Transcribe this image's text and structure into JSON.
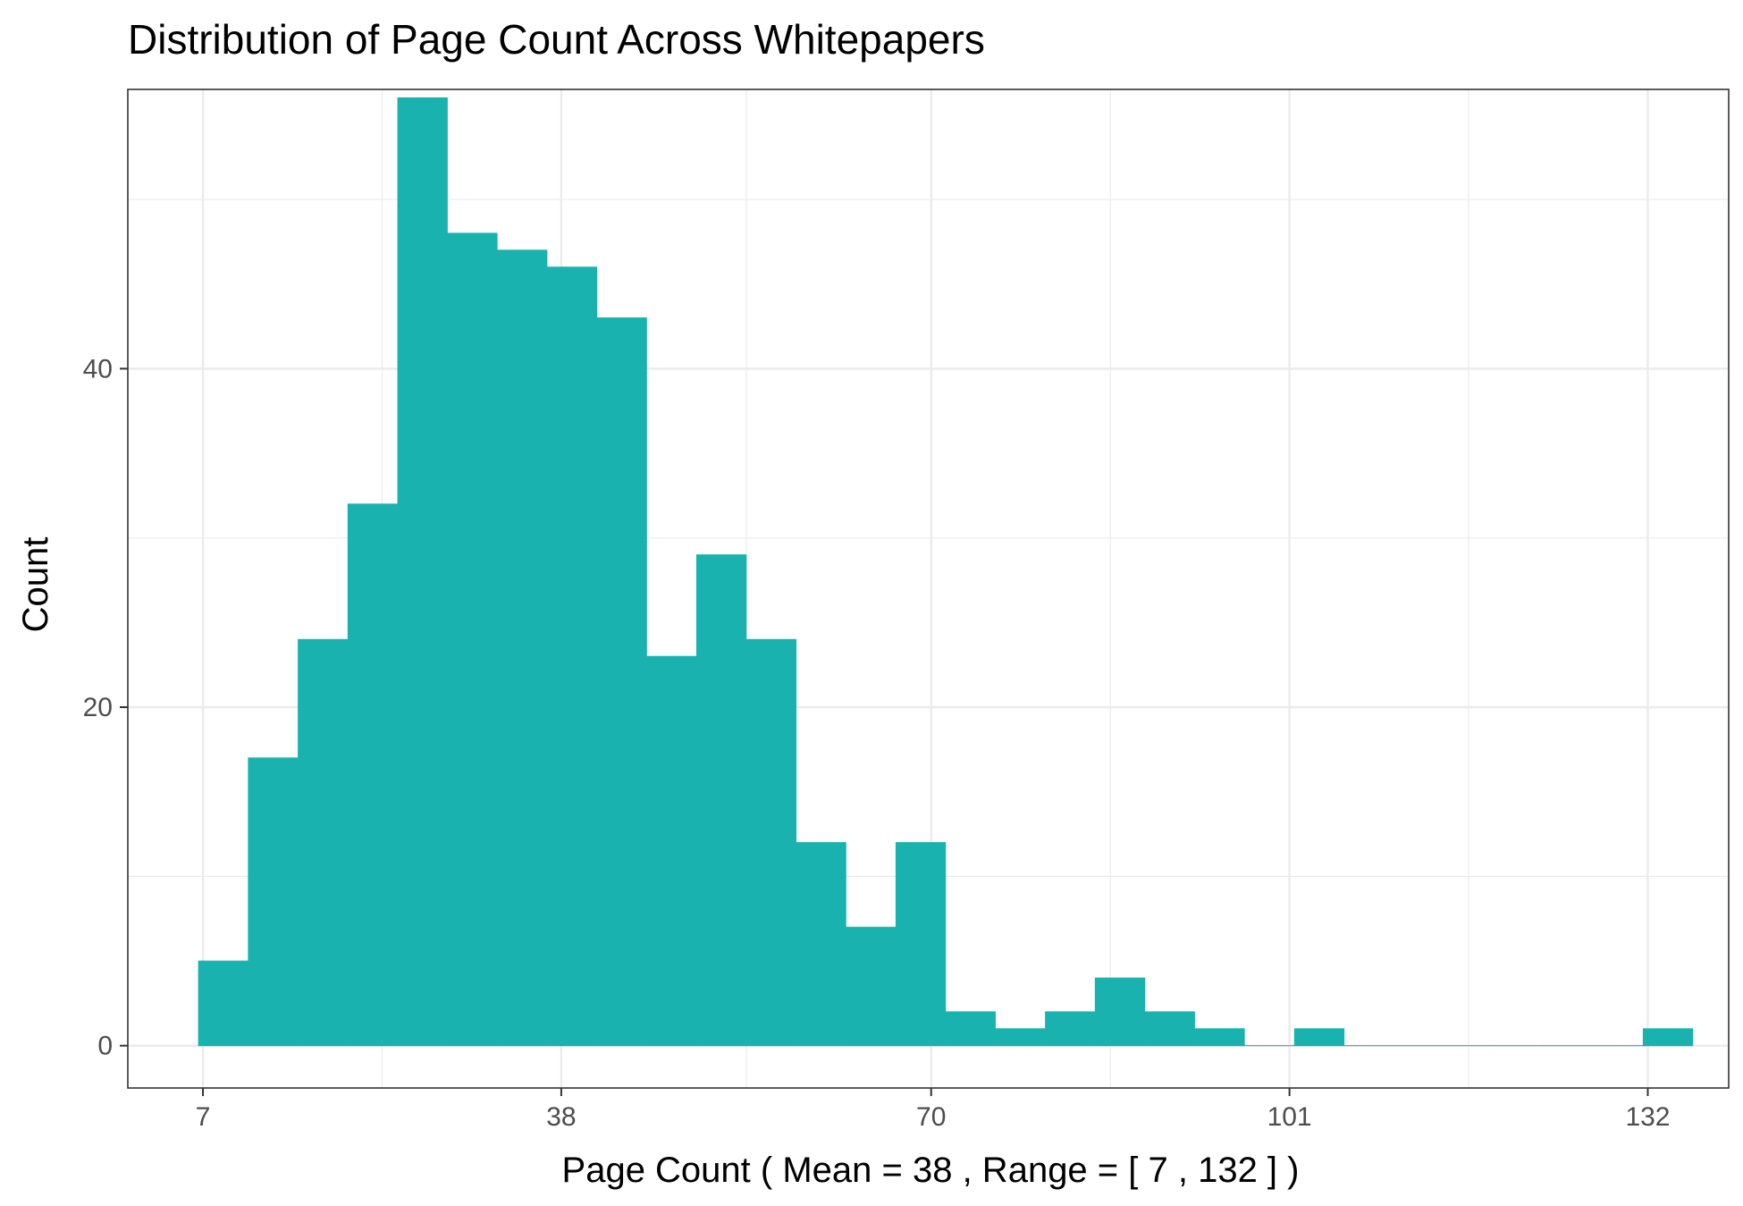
{
  "chart_data": {
    "type": "bar",
    "title": "Distribution of Page Count Across Whitepapers",
    "xlabel": "Page Count ( Mean = 38 , Range = [ 7 , 132 ] )",
    "ylabel": "Count",
    "bin_width": 4.31,
    "bin_start": 6.58,
    "values": [
      5,
      17,
      24,
      32,
      56,
      48,
      47,
      46,
      43,
      23,
      29,
      24,
      12,
      7,
      12,
      2,
      1,
      2,
      4,
      2,
      1,
      0,
      1,
      0,
      0,
      0,
      0,
      0,
      0,
      1
    ],
    "xlim": [
      0.5,
      139.0
    ],
    "ylim": [
      -2.5,
      56.5
    ],
    "x_ticks": [
      7,
      38,
      70,
      101,
      132
    ],
    "x_tick_labels": [
      "7",
      "38",
      "70",
      "101",
      "132"
    ],
    "x_minor_grid": [
      22.5,
      54,
      85.5,
      116.5
    ],
    "y_ticks": [
      0,
      20,
      40
    ],
    "y_tick_labels": [
      "0",
      "20",
      "40"
    ],
    "y_minor_grid": [
      10,
      30,
      50
    ],
    "grid": true,
    "colors": {
      "bar": "#1ab2ae",
      "grid": "#ebebeb",
      "panel_border": "#333333",
      "tick": "#333333"
    }
  }
}
